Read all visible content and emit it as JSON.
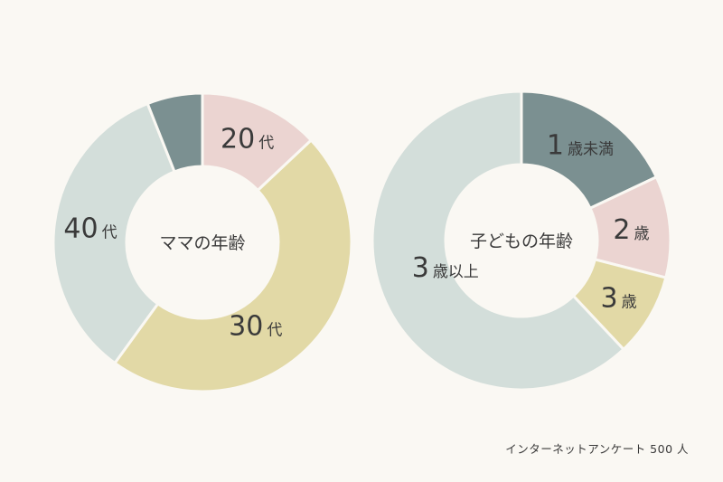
{
  "colors": {
    "background": "#faf8f3",
    "slate": "#7b9091",
    "pink": "#ebd4d1",
    "yellow": "#e2d9a6",
    "light": "#d3deda"
  },
  "chart_data": [
    {
      "type": "pie",
      "donut": true,
      "title": "ママの年齢",
      "slices": [
        {
          "num": "20",
          "unit": "代",
          "value": 13,
          "color": "#ebd4d1"
        },
        {
          "num": "30",
          "unit": "代",
          "value": 47,
          "color": "#e2d9a6"
        },
        {
          "num": "40",
          "unit": "代",
          "value": 34,
          "color": "#d3deda"
        },
        {
          "num": "",
          "unit": "",
          "value": 6,
          "color": "#7b9091"
        }
      ]
    },
    {
      "type": "pie",
      "donut": true,
      "title": "子どもの年齢",
      "slices": [
        {
          "num": "1",
          "unit": "歳未満",
          "value": 18,
          "color": "#7b9091"
        },
        {
          "num": "2",
          "unit": "歳",
          "value": 11,
          "color": "#ebd4d1"
        },
        {
          "num": "3",
          "unit": "歳",
          "value": 9,
          "color": "#e2d9a6"
        },
        {
          "num": "3",
          "unit": "歳以上",
          "value": 62,
          "color": "#d3deda"
        }
      ]
    }
  ],
  "source": "インターネットアンケート 500 人"
}
